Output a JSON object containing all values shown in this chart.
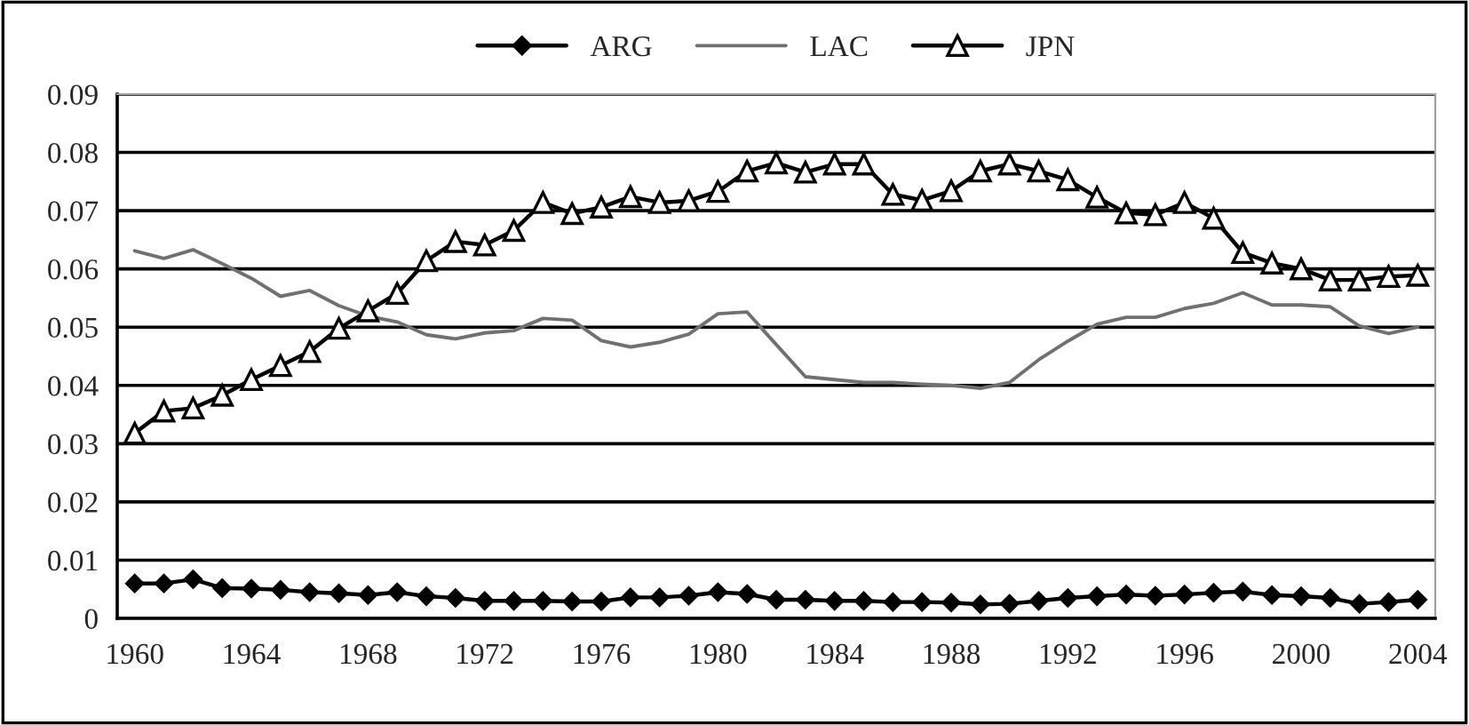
{
  "chart_data": {
    "type": "line",
    "x": [
      1960,
      1961,
      1962,
      1963,
      1964,
      1965,
      1966,
      1967,
      1968,
      1969,
      1970,
      1971,
      1972,
      1973,
      1974,
      1975,
      1976,
      1977,
      1978,
      1979,
      1980,
      1981,
      1982,
      1983,
      1984,
      1985,
      1986,
      1987,
      1988,
      1989,
      1990,
      1991,
      1992,
      1993,
      1994,
      1995,
      1996,
      1997,
      1998,
      1999,
      2000,
      2001,
      2002,
      2003,
      2004
    ],
    "series": [
      {
        "name": "ARG",
        "color": "#000000",
        "marker": "diamond",
        "values": [
          0.006,
          0.006,
          0.0067,
          0.0052,
          0.0051,
          0.0049,
          0.0045,
          0.0043,
          0.004,
          0.0045,
          0.0038,
          0.0035,
          0.003,
          0.003,
          0.003,
          0.0029,
          0.0029,
          0.0036,
          0.0036,
          0.0039,
          0.0045,
          0.0042,
          0.0032,
          0.0032,
          0.003,
          0.003,
          0.0028,
          0.0028,
          0.0027,
          0.0024,
          0.0025,
          0.003,
          0.0035,
          0.0038,
          0.0041,
          0.0039,
          0.0041,
          0.0044,
          0.0046,
          0.004,
          0.0038,
          0.0035,
          0.0025,
          0.0028,
          0.0032
        ]
      },
      {
        "name": "LAC",
        "color": "#707070",
        "marker": "none",
        "values": [
          0.0631,
          0.0618,
          0.0633,
          0.0609,
          0.0584,
          0.0553,
          0.0563,
          0.0537,
          0.0519,
          0.0509,
          0.0487,
          0.048,
          0.049,
          0.0494,
          0.0515,
          0.0512,
          0.0477,
          0.0466,
          0.0474,
          0.0488,
          0.0523,
          0.0526,
          0.047,
          0.0415,
          0.041,
          0.0405,
          0.0405,
          0.0402,
          0.04,
          0.0395,
          0.0405,
          0.0444,
          0.0476,
          0.0505,
          0.0517,
          0.0517,
          0.0532,
          0.0541,
          0.0559,
          0.0538,
          0.0538,
          0.0535,
          0.0502,
          0.0489,
          0.05
        ]
      },
      {
        "name": "JPN",
        "color": "#000000",
        "marker": "triangle",
        "values": [
          0.0318,
          0.0356,
          0.0361,
          0.0383,
          0.041,
          0.0434,
          0.0458,
          0.0498,
          0.0528,
          0.0558,
          0.0614,
          0.0647,
          0.0641,
          0.0666,
          0.0714,
          0.0695,
          0.0706,
          0.0724,
          0.0714,
          0.0717,
          0.0733,
          0.0768,
          0.0782,
          0.0766,
          0.078,
          0.078,
          0.0728,
          0.0718,
          0.0734,
          0.0768,
          0.078,
          0.0768,
          0.0753,
          0.0723,
          0.0696,
          0.0693,
          0.0714,
          0.0687,
          0.0628,
          0.061,
          0.06,
          0.0581,
          0.0581,
          0.0587,
          0.0589
        ]
      }
    ],
    "xlim": [
      1959.4,
      2004.6
    ],
    "xticks": [
      1960,
      1964,
      1968,
      1972,
      1976,
      1980,
      1984,
      1988,
      1992,
      1996,
      2000,
      2004
    ],
    "ylim": [
      0,
      0.09
    ],
    "yticks": [
      {
        "value": 0,
        "label": "0"
      },
      0.01,
      0.02,
      0.03,
      0.04,
      0.05,
      0.06,
      0.07,
      0.08,
      0.09
    ],
    "grid": "y",
    "legend": "top"
  }
}
